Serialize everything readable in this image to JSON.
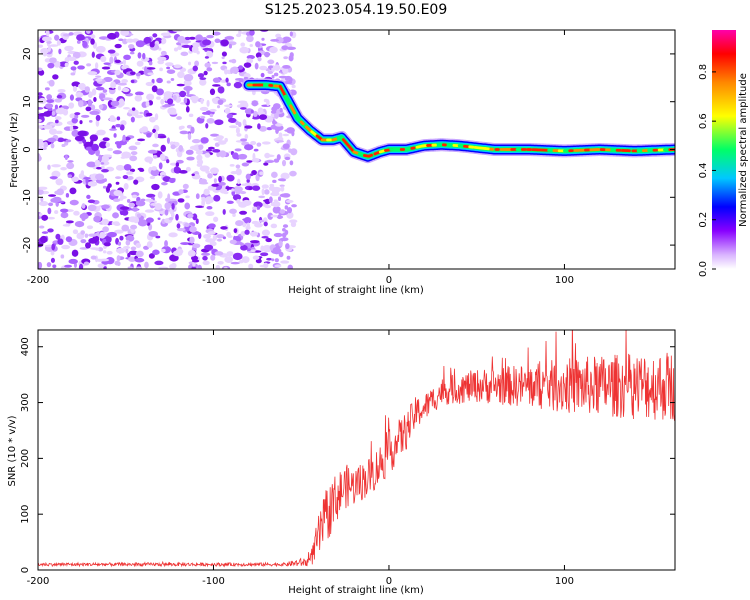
{
  "figure": {
    "title": "S125.2023.054.19.50.E09"
  },
  "chart_data": [
    {
      "type": "heatmap",
      "xlabel": "Height of straight line (km)",
      "ylabel": "Frequency (Hz)",
      "xlim": [
        -200,
        163
      ],
      "ylim": [
        -25,
        25
      ],
      "x_ticks": [
        -200,
        -100,
        0,
        100
      ],
      "y_ticks": [
        -20,
        -10,
        0,
        10,
        20
      ],
      "colorbar": {
        "label": "Normalized spectral amplitude",
        "range": [
          0,
          0.97
        ],
        "ticks": [
          0.0,
          0.2,
          0.4,
          0.6,
          0.8
        ],
        "colormap": [
          "#ffffff",
          "#d9b3ff",
          "#8800ff",
          "#0000ff",
          "#00c8ff",
          "#00ff66",
          "#ffff00",
          "#ff8800",
          "#ff0000",
          "#ff00aa"
        ]
      },
      "noise_region_x": [
        -200,
        -60
      ],
      "track": {
        "x": [
          -80,
          -70,
          -62,
          -58,
          -52,
          -45,
          -38,
          -32,
          -27,
          -20,
          -12,
          -5,
          0,
          10,
          20,
          30,
          40,
          60,
          80,
          100,
          120,
          140,
          163
        ],
        "frequency": [
          13.5,
          13.5,
          13.2,
          10.5,
          6.5,
          4,
          2,
          2,
          2.5,
          -0.5,
          -1.5,
          -0.5,
          0,
          0,
          0.8,
          1,
          0.8,
          0,
          0,
          -0.3,
          0,
          -0.3,
          0
        ]
      }
    },
    {
      "type": "line",
      "xlabel": "Height of straight line (km)",
      "ylabel": "SNR (10 * v/v)",
      "xlim": [
        -200,
        163
      ],
      "ylim": [
        0,
        430
      ],
      "x_ticks": [
        -200,
        -100,
        0,
        100
      ],
      "y_ticks": [
        0,
        100,
        200,
        300,
        400
      ],
      "series": [
        {
          "color": "#ee3333",
          "envelope_x": [
            -200,
            -60,
            -45,
            -40,
            -35,
            -30,
            -25,
            -20,
            -10,
            0,
            10,
            15,
            20,
            30,
            50,
            80,
            100,
            120,
            140,
            163
          ],
          "envelope_mean": [
            10,
            10,
            15,
            60,
            100,
            130,
            150,
            150,
            170,
            210,
            250,
            280,
            290,
            320,
            330,
            330,
            330,
            330,
            330,
            330
          ],
          "noise_amplitude": [
            3,
            3,
            10,
            40,
            50,
            45,
            40,
            35,
            35,
            40,
            35,
            30,
            25,
            25,
            30,
            40,
            50,
            55,
            60,
            65
          ]
        }
      ]
    }
  ]
}
